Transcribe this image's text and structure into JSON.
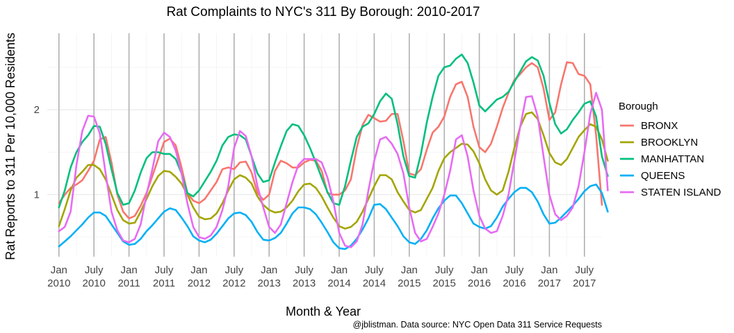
{
  "chart_data": {
    "type": "line",
    "title": "Rat Complaints to NYC's 311 By Borough: 2010-2017",
    "xlabel": "Month & Year",
    "ylabel": "Rat Reports to 311 Per 10,000 Residents",
    "caption": "@jblistman. Data source: NYC Open Data 311 Service Requests",
    "legend_title": "Borough",
    "legend_position": "right",
    "x_range": [
      "2009-11",
      "2017-10"
    ],
    "y_range": [
      0.27,
      2.9
    ],
    "y_ticks": [
      1,
      2
    ],
    "y_tick_labels": [
      "1",
      "2"
    ],
    "x_ticks": [
      "2010-01",
      "2010-07",
      "2011-01",
      "2011-07",
      "2012-01",
      "2012-07",
      "2013-01",
      "2013-07",
      "2014-01",
      "2014-07",
      "2015-01",
      "2015-07",
      "2016-01",
      "2016-07",
      "2017-01",
      "2017-07"
    ],
    "x_tick_labels": [
      {
        "month": "Jan",
        "year": "2010"
      },
      {
        "month": "July",
        "year": "2010"
      },
      {
        "month": "Jan",
        "year": "2011"
      },
      {
        "month": "July",
        "year": "2011"
      },
      {
        "month": "Jan",
        "year": "2012"
      },
      {
        "month": "July",
        "year": "2012"
      },
      {
        "month": "Jan",
        "year": "2013"
      },
      {
        "month": "July",
        "year": "2013"
      },
      {
        "month": "Jan",
        "year": "2014"
      },
      {
        "month": "July",
        "year": "2014"
      },
      {
        "month": "Jan",
        "year": "2015"
      },
      {
        "month": "July",
        "year": "2015"
      },
      {
        "month": "Jan",
        "year": "2016"
      },
      {
        "month": "July",
        "year": "2016"
      },
      {
        "month": "Jan",
        "year": "2017"
      },
      {
        "month": "July",
        "year": "2017"
      }
    ],
    "vertical_lines_at": [
      "2010-01",
      "2010-07",
      "2011-01",
      "2011-07",
      "2012-01",
      "2012-07",
      "2013-01",
      "2013-07",
      "2014-01",
      "2014-07",
      "2015-01",
      "2015-07",
      "2016-01",
      "2016-07",
      "2017-01",
      "2017-07"
    ],
    "grid": true,
    "series": [
      {
        "name": "BRONX",
        "color": "#F8766D",
        "start": "2010-01",
        "values": [
          0.9,
          1.0,
          1.08,
          1.12,
          1.17,
          1.28,
          1.4,
          1.65,
          1.68,
          1.38,
          1.0,
          0.8,
          0.72,
          0.75,
          0.87,
          1.02,
          1.22,
          1.42,
          1.62,
          1.66,
          1.58,
          1.32,
          1.02,
          0.93,
          0.9,
          0.95,
          1.05,
          1.15,
          1.3,
          1.32,
          1.3,
          1.38,
          1.39,
          1.26,
          1.02,
          0.94,
          1.0,
          1.28,
          1.4,
          1.37,
          1.32,
          1.32,
          1.38,
          1.41,
          1.4,
          1.28,
          1.02,
          1.0,
          1.0,
          1.05,
          1.18,
          1.55,
          1.82,
          1.94,
          1.9,
          1.86,
          1.87,
          1.95,
          1.95,
          1.63,
          1.25,
          1.23,
          1.3,
          1.53,
          1.73,
          1.8,
          1.92,
          2.15,
          2.3,
          2.33,
          2.15,
          1.8,
          1.56,
          1.5,
          1.6,
          1.8,
          2.02,
          2.2,
          2.35,
          2.42,
          2.5,
          2.55,
          2.5,
          2.25,
          1.88,
          1.97,
          2.3,
          2.56,
          2.55,
          2.42,
          2.4,
          2.3,
          1.7,
          0.88
        ]
      },
      {
        "name": "BROOKLYN",
        "color": "#A3A500",
        "start": "2010-01",
        "values": [
          0.63,
          0.83,
          1.05,
          1.2,
          1.27,
          1.35,
          1.35,
          1.3,
          1.18,
          1.0,
          0.82,
          0.7,
          0.66,
          0.67,
          0.8,
          0.95,
          1.1,
          1.22,
          1.28,
          1.27,
          1.21,
          1.13,
          1.0,
          0.85,
          0.74,
          0.71,
          0.72,
          0.78,
          0.9,
          1.05,
          1.18,
          1.23,
          1.2,
          1.13,
          0.98,
          0.88,
          0.82,
          0.79,
          0.8,
          0.85,
          0.93,
          1.04,
          1.12,
          1.13,
          1.08,
          0.98,
          0.85,
          0.73,
          0.63,
          0.6,
          0.62,
          0.68,
          0.8,
          0.95,
          1.1,
          1.23,
          1.23,
          1.18,
          1.03,
          0.92,
          0.82,
          0.79,
          0.82,
          0.95,
          1.08,
          1.28,
          1.43,
          1.5,
          1.55,
          1.6,
          1.59,
          1.51,
          1.37,
          1.18,
          1.05,
          1.0,
          1.05,
          1.27,
          1.55,
          1.8,
          1.95,
          1.97,
          1.89,
          1.7,
          1.49,
          1.38,
          1.35,
          1.42,
          1.55,
          1.68,
          1.76,
          1.83,
          1.8,
          1.65,
          1.4
        ]
      },
      {
        "name": "MANHATTAN",
        "color": "#00BF7D",
        "start": "2010-01",
        "values": [
          0.85,
          1.05,
          1.32,
          1.5,
          1.62,
          1.7,
          1.81,
          1.8,
          1.6,
          1.3,
          1.02,
          0.88,
          0.9,
          1.05,
          1.26,
          1.43,
          1.5,
          1.5,
          1.48,
          1.48,
          1.42,
          1.25,
          1.02,
          0.98,
          1.05,
          1.16,
          1.27,
          1.4,
          1.58,
          1.68,
          1.71,
          1.7,
          1.65,
          1.45,
          1.25,
          1.15,
          1.17,
          1.38,
          1.57,
          1.75,
          1.83,
          1.81,
          1.7,
          1.55,
          1.38,
          1.2,
          1.03,
          0.9,
          0.88,
          1.1,
          1.4,
          1.68,
          1.8,
          1.84,
          1.95,
          2.1,
          2.19,
          2.13,
          1.83,
          1.45,
          1.22,
          1.2,
          1.48,
          1.85,
          2.15,
          2.4,
          2.5,
          2.52,
          2.6,
          2.65,
          2.55,
          2.32,
          2.05,
          1.98,
          2.05,
          2.12,
          2.15,
          2.21,
          2.33,
          2.45,
          2.57,
          2.62,
          2.58,
          2.4,
          2.08,
          1.83,
          1.72,
          1.77,
          1.88,
          1.97,
          2.07,
          2.1,
          1.92,
          1.45,
          1.22
        ]
      },
      {
        "name": "QUEENS",
        "color": "#00B0F6",
        "start": "2010-01",
        "values": [
          0.39,
          0.45,
          0.51,
          0.58,
          0.65,
          0.73,
          0.79,
          0.79,
          0.75,
          0.65,
          0.55,
          0.45,
          0.41,
          0.42,
          0.48,
          0.57,
          0.64,
          0.72,
          0.8,
          0.84,
          0.82,
          0.73,
          0.63,
          0.51,
          0.46,
          0.44,
          0.47,
          0.54,
          0.63,
          0.72,
          0.78,
          0.79,
          0.76,
          0.68,
          0.56,
          0.47,
          0.46,
          0.49,
          0.55,
          0.66,
          0.78,
          0.85,
          0.85,
          0.83,
          0.77,
          0.67,
          0.56,
          0.44,
          0.37,
          0.36,
          0.4,
          0.48,
          0.59,
          0.72,
          0.88,
          0.89,
          0.83,
          0.73,
          0.63,
          0.51,
          0.44,
          0.42,
          0.48,
          0.58,
          0.72,
          0.84,
          0.93,
          0.99,
          0.99,
          0.9,
          0.78,
          0.66,
          0.62,
          0.6,
          0.63,
          0.73,
          0.86,
          0.95,
          1.03,
          1.08,
          1.08,
          1.03,
          0.92,
          0.77,
          0.66,
          0.67,
          0.73,
          0.8,
          0.87,
          0.95,
          1.04,
          1.1,
          1.12,
          1.02,
          0.8
        ]
      },
      {
        "name": "STATEN ISLAND",
        "color": "#E76BF3",
        "start": "2010-01",
        "values": [
          0.57,
          0.62,
          0.8,
          1.35,
          1.75,
          1.93,
          1.92,
          1.72,
          1.25,
          0.8,
          0.58,
          0.46,
          0.44,
          0.48,
          0.65,
          1.0,
          1.3,
          1.63,
          1.73,
          1.68,
          1.52,
          1.25,
          0.9,
          0.62,
          0.5,
          0.48,
          0.52,
          0.62,
          0.82,
          1.1,
          1.55,
          1.75,
          1.69,
          1.45,
          1.1,
          0.85,
          0.62,
          0.55,
          0.65,
          0.9,
          1.15,
          1.35,
          1.42,
          1.42,
          1.42,
          1.38,
          1.2,
          0.92,
          0.55,
          0.4,
          0.38,
          0.45,
          0.65,
          1.05,
          1.4,
          1.65,
          1.68,
          1.6,
          1.48,
          1.25,
          0.85,
          0.55,
          0.45,
          0.48,
          0.62,
          0.78,
          1.0,
          1.28,
          1.65,
          1.7,
          1.45,
          1.05,
          0.75,
          0.6,
          0.55,
          0.57,
          0.75,
          1.0,
          1.4,
          1.8,
          2.15,
          2.16,
          1.92,
          1.45,
          1.0,
          0.77,
          0.7,
          0.75,
          0.85,
          1.1,
          1.5,
          1.95,
          2.2,
          2.0,
          1.05
        ]
      }
    ]
  }
}
